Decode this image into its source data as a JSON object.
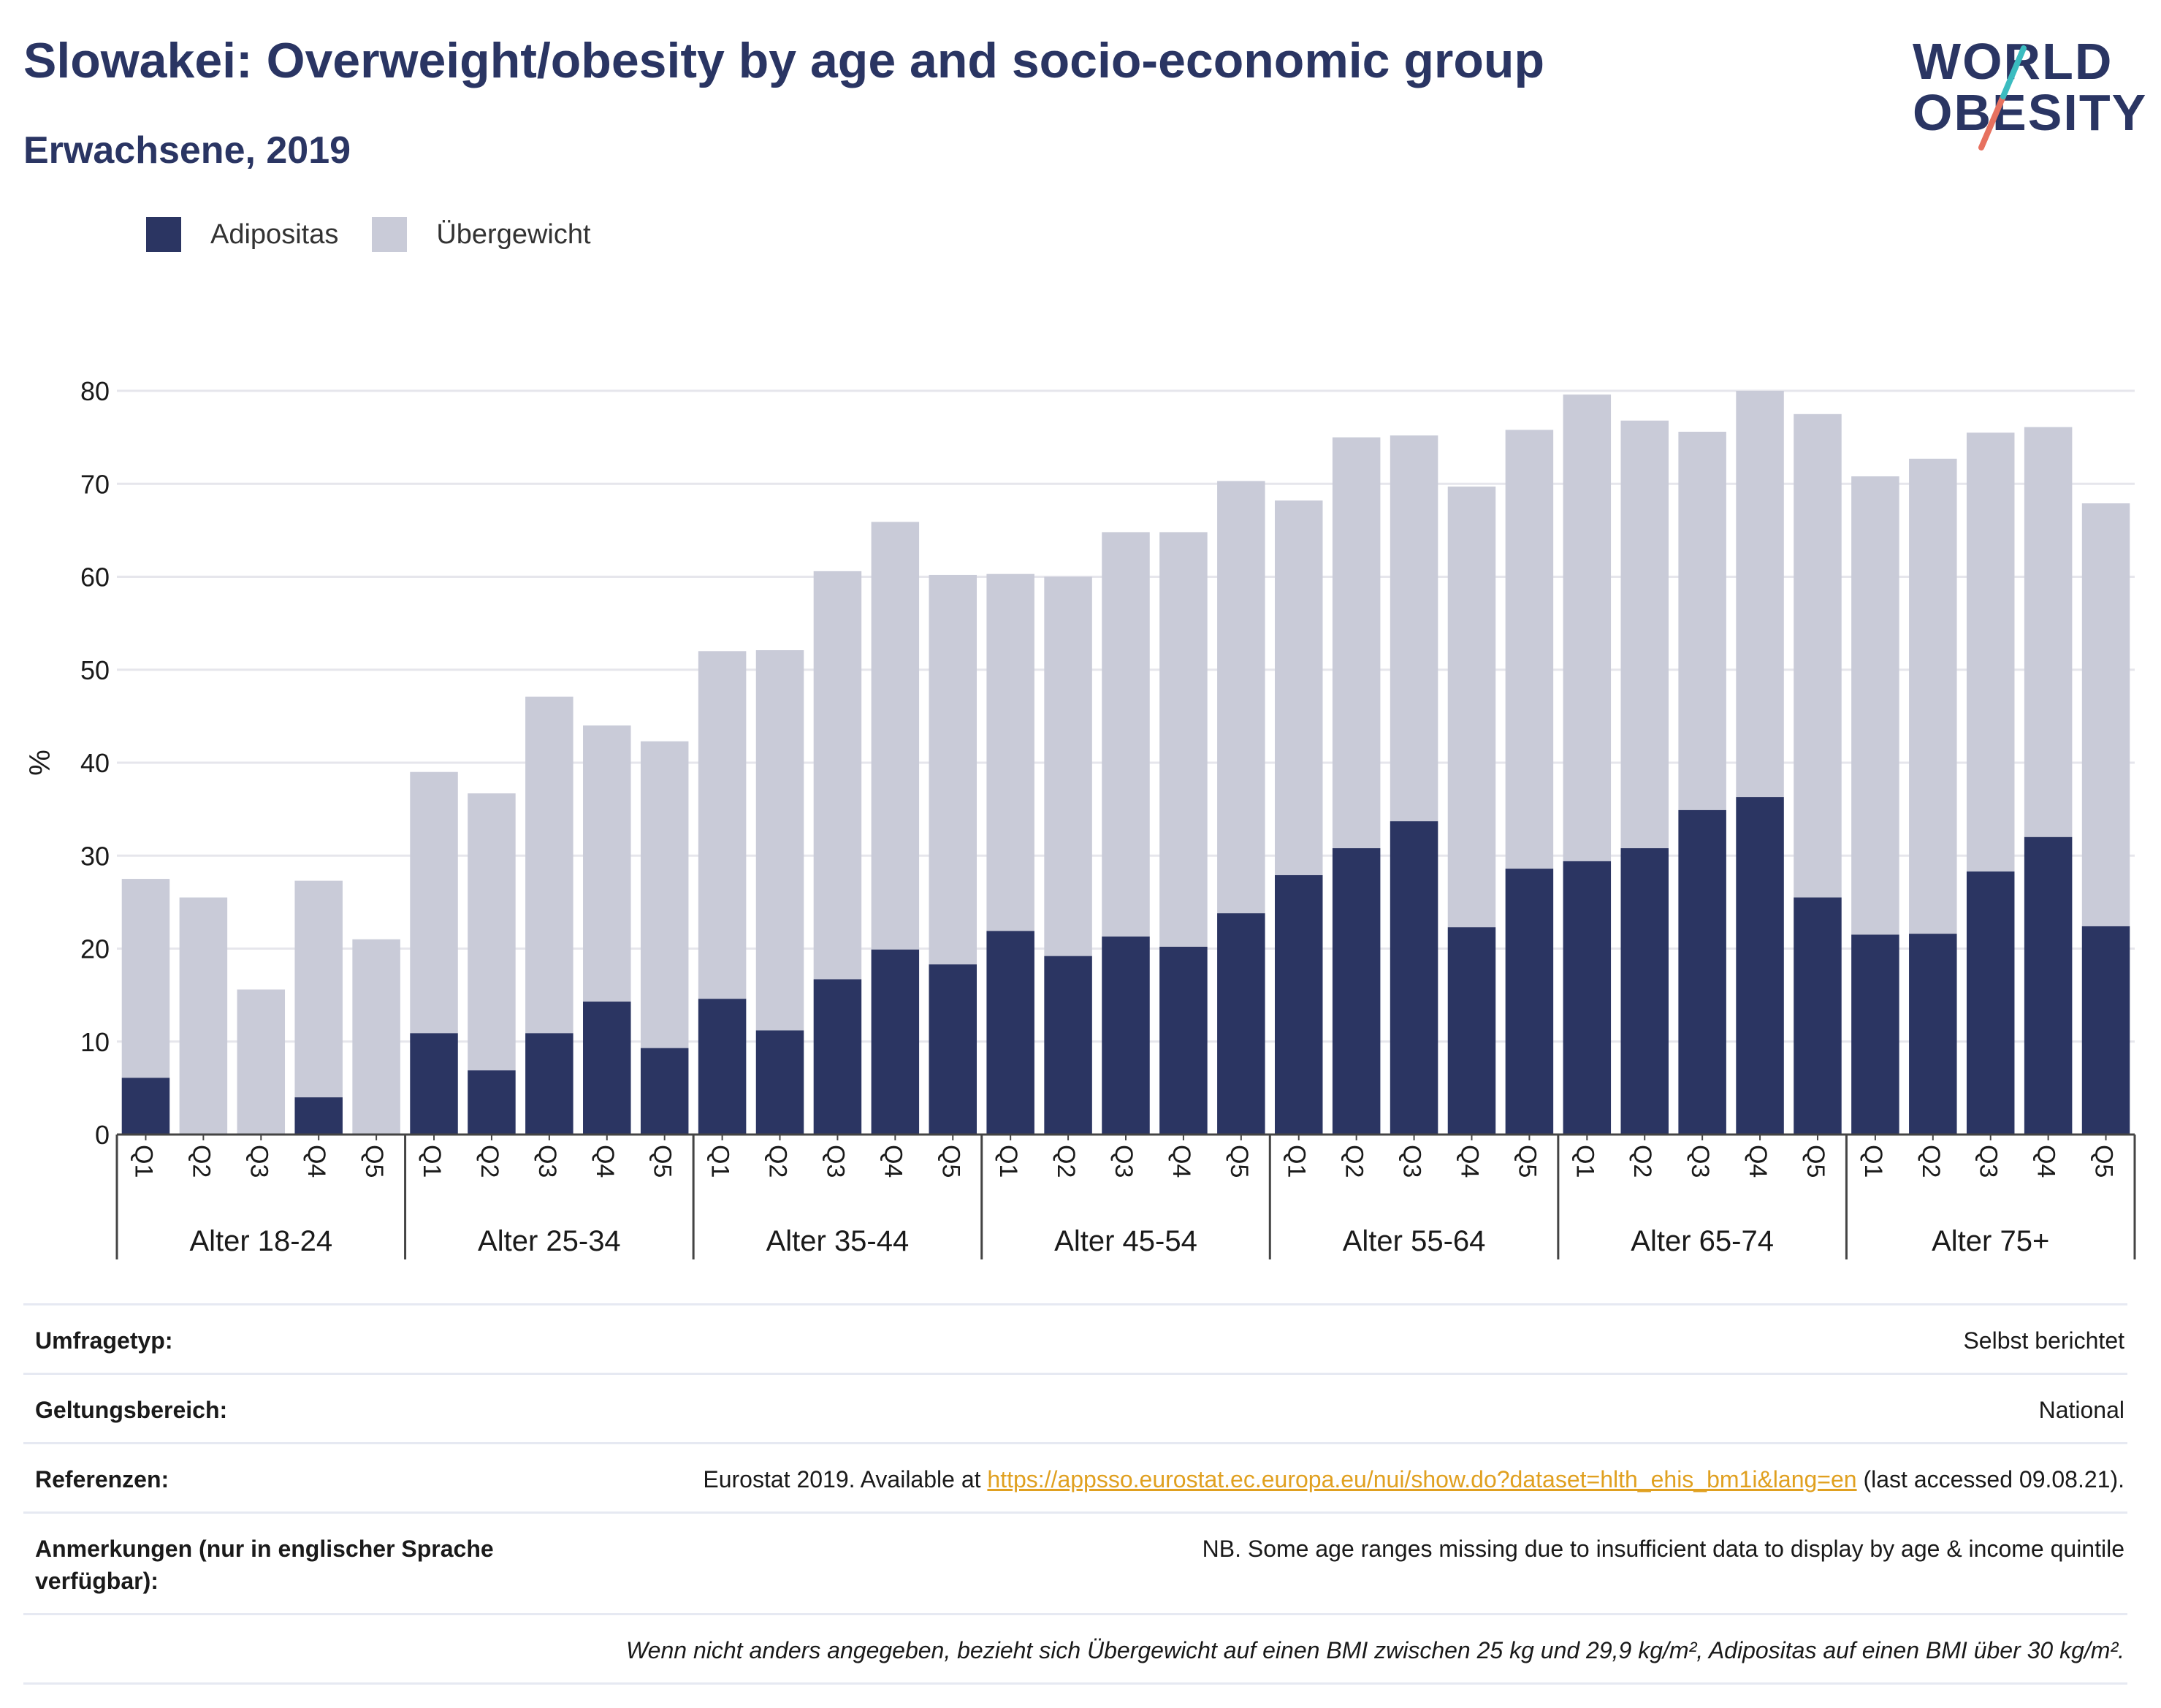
{
  "title": "Slowakei: Overweight/obesity by age and socio-economic group",
  "subtitle": "Erwachsene, 2019",
  "logo": {
    "line1": "WORLD",
    "line2": "OBESITY"
  },
  "colors": {
    "obesity": "#2b3562",
    "overweight": "#c9cbd8",
    "title": "#2a3563",
    "logo_teal": "#3bbcc0",
    "logo_red": "#e7715f",
    "link": "#e0a020"
  },
  "legend": [
    {
      "label": "Adipositas",
      "color": "#2b3562"
    },
    {
      "label": "Übergewicht",
      "color": "#c9cbd8"
    }
  ],
  "chart_data": {
    "type": "bar",
    "stacked": true,
    "ylabel": "%",
    "ylim": [
      0,
      80
    ],
    "yticks": [
      0,
      10,
      20,
      30,
      40,
      50,
      60,
      70,
      80
    ],
    "grid": true,
    "legend_position": "top-left",
    "quintiles": [
      "Q1",
      "Q2",
      "Q3",
      "Q4",
      "Q5"
    ],
    "groups": [
      "Alter 18-24",
      "Alter 25-34",
      "Alter 35-44",
      "Alter 45-54",
      "Alter 55-64",
      "Alter 65-74",
      "Alter 75+"
    ],
    "series": [
      {
        "name": "Adipositas",
        "values": [
          6.1,
          0,
          0,
          4.0,
          0,
          10.9,
          6.9,
          10.9,
          14.3,
          9.3,
          14.6,
          11.2,
          16.7,
          19.9,
          18.3,
          21.9,
          19.2,
          21.3,
          20.2,
          23.8,
          27.9,
          30.8,
          33.7,
          22.3,
          28.6,
          29.4,
          30.8,
          34.9,
          36.3,
          25.5,
          21.5,
          21.6,
          28.3,
          32.0,
          22.4
        ]
      },
      {
        "name": "Übergewicht",
        "values": [
          21.4,
          25.5,
          15.6,
          23.3,
          21.0,
          28.1,
          29.8,
          36.2,
          29.7,
          33.0,
          37.4,
          40.9,
          43.9,
          46.0,
          41.9,
          38.4,
          40.8,
          43.5,
          44.6,
          46.5,
          40.3,
          44.2,
          41.5,
          47.4,
          47.2,
          50.2,
          46.0,
          40.7,
          43.7,
          52.0,
          49.3,
          51.1,
          47.2,
          44.1,
          45.5
        ]
      }
    ],
    "totals": [
      27.5,
      25.5,
      15.6,
      27.3,
      21.0,
      39.0,
      36.7,
      47.1,
      44.0,
      42.3,
      52.0,
      52.1,
      60.6,
      65.9,
      60.2,
      60.3,
      60.0,
      64.8,
      64.8,
      70.3,
      68.2,
      75.0,
      75.2,
      69.7,
      75.8,
      79.6,
      76.8,
      75.6,
      80.0,
      77.5,
      70.8,
      72.7,
      75.5,
      76.1,
      67.9
    ]
  },
  "info": {
    "survey_label": "Umfragetyp:",
    "survey_value": "Selbst berichtet",
    "scope_label": "Geltungsbereich:",
    "scope_value": "National",
    "ref_label": "Referenzen:",
    "ref_prefix": "Eurostat 2019. Available at ",
    "ref_link": "https://appsso.eurostat.ec.europa.eu/nui/show.do?dataset=hlth_ehis_bm1i&lang=en",
    "ref_suffix": " (last accessed 09.08.21).",
    "notes_label": "Anmerkungen (nur in englischer Sprache verfügbar):",
    "notes_value": "NB. Some age ranges missing due to insufficient data to display by age & income quintile",
    "footnote": "Wenn nicht anders angegeben, bezieht sich Übergewicht auf einen BMI zwischen 25 kg und 29,9 kg/m², Adipositas auf einen BMI über 30 kg/m²."
  }
}
